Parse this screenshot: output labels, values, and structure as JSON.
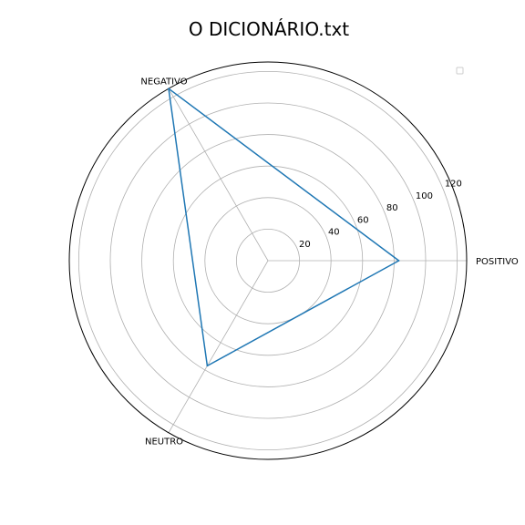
{
  "chart_data": {
    "type": "radar",
    "title": "O DICIONÁRIO.txt",
    "categories": [
      "POSITIVO",
      "NEGATIVO",
      "NEUTRO"
    ],
    "series": [
      {
        "values": [
          83,
          126,
          77
        ],
        "color": "#1f77b4"
      }
    ],
    "radial_ticks": [
      20,
      40,
      60,
      80,
      100,
      120
    ],
    "rmax": 126,
    "grid": true,
    "legend": {
      "placement": "top-right",
      "entries": []
    }
  }
}
